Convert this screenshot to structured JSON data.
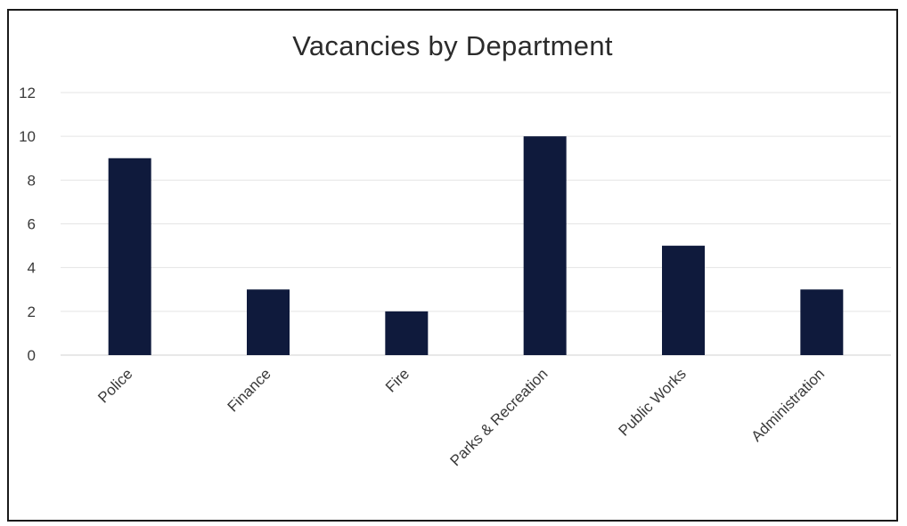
{
  "chart_data": {
    "type": "bar",
    "title": "Vacancies by Department",
    "xlabel": "",
    "ylabel": "",
    "categories": [
      "Police",
      "Finance",
      "Fire",
      "Parks & Recreation",
      "Public Works",
      "Administration"
    ],
    "values": [
      9,
      3,
      2,
      10,
      5,
      3
    ],
    "ylim": [
      0,
      12
    ],
    "yticks": [
      0,
      2,
      4,
      6,
      8,
      10,
      12
    ],
    "grid": true,
    "legend": "none",
    "bar_color": "#0f1a3c",
    "grid_color": "#e4e4e4"
  }
}
